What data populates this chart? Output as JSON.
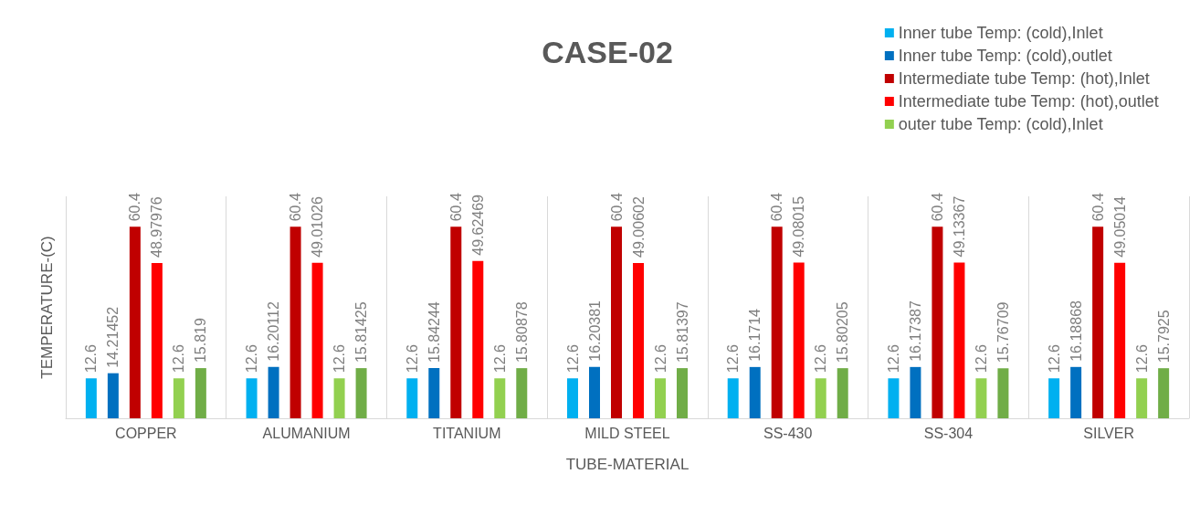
{
  "chart_data": {
    "type": "bar",
    "title": "CASE-02",
    "xlabel": "TUBE-MATERIAL",
    "ylabel": "TEMPERATURE-(C)",
    "categories": [
      "COPPER",
      "ALUMANIUM",
      "TITANIUM",
      "MILD STEEL",
      "SS-430",
      "SS-304",
      "SILVER"
    ],
    "series": [
      {
        "name": "Inner tube Temp: (cold),Inlet",
        "color": "#00b0f0",
        "values": [
          12.6,
          12.6,
          12.6,
          12.6,
          12.6,
          12.6,
          12.6
        ]
      },
      {
        "name": "Inner tube Temp: (cold),outlet",
        "color": "#0070c0",
        "values": [
          14.21452,
          16.20112,
          15.84244,
          16.20381,
          16.1714,
          16.17387,
          16.18868
        ]
      },
      {
        "name": "Intermediate tube Temp: (hot),Inlet",
        "color": "#c00000",
        "values": [
          60.4,
          60.4,
          60.4,
          60.4,
          60.4,
          60.4,
          60.4
        ]
      },
      {
        "name": "Intermediate tube Temp: (hot),outlet",
        "color": "#ff0000",
        "values": [
          48.97976,
          49.01026,
          49.62469,
          49.00602,
          49.08015,
          49.13367,
          49.05014
        ]
      },
      {
        "name": "outer tube Temp: (cold),Inlet",
        "color": "#92d050",
        "values": [
          12.6,
          12.6,
          12.6,
          12.6,
          12.6,
          12.6,
          12.6
        ]
      },
      {
        "color": "#70ad47",
        "values": [
          15.819,
          15.81425,
          15.80878,
          15.81397,
          15.80205,
          15.76709,
          15.7925
        ]
      }
    ],
    "ylim": [
      0,
      70
    ],
    "data_labels": true,
    "grid": "x",
    "legend": "top right"
  }
}
